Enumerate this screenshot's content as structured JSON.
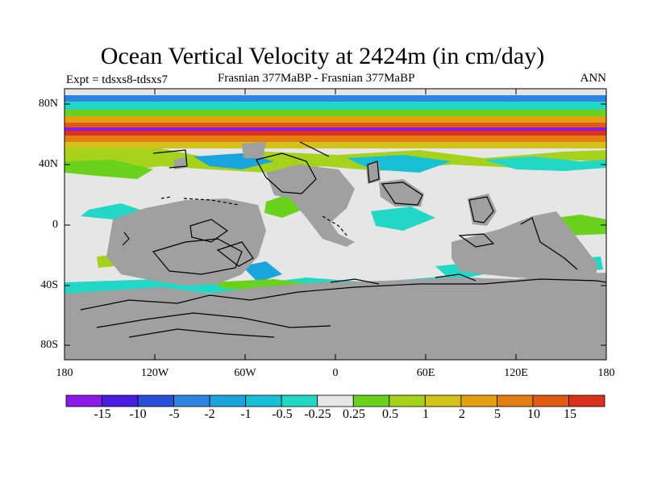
{
  "title": "Ocean Vertical Velocity at 2424m (in cm/day)",
  "left_subtitle": "Expt = tdsxs8-tdsxs7",
  "center_subtitle": "Frasnian 377MaBP - Frasnian 377MaBP",
  "right_subtitle": "ANN",
  "lat_labels": [
    "80N",
    "40N",
    "0",
    "40S",
    "80S"
  ],
  "lon_labels": [
    "180",
    "120W",
    "60W",
    "0",
    "60E",
    "120E",
    "180"
  ],
  "colorbar": {
    "labels": [
      "-15",
      "-10",
      "-5",
      "-2",
      "-1",
      "-0.5",
      "-0.25",
      "0.25",
      "0.5",
      "1",
      "2",
      "5",
      "10",
      "15"
    ],
    "colors": [
      "#8a1be6",
      "#4a1ee0",
      "#2a4fd8",
      "#2f86e0",
      "#1aa6dc",
      "#18c0d6",
      "#23d7c6",
      "#e6e6e6",
      "#6ad21c",
      "#a6d21c",
      "#d2c21a",
      "#e2a012",
      "#e27e12",
      "#e05a14",
      "#d8321a"
    ]
  },
  "colors": {
    "land": "#a0a0a0",
    "neutral": "#e6e6e6"
  }
}
